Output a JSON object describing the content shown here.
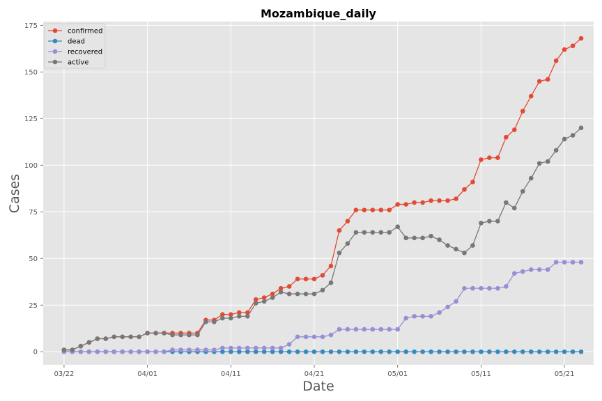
{
  "chart_data": {
    "type": "line",
    "title": "Mozambique_daily",
    "xlabel": "Date",
    "ylabel": "Cases",
    "ylim": [
      -7,
      177
    ],
    "xlim": [
      -2.5,
      63.5
    ],
    "grid": true,
    "legend_position": "top-left",
    "yticks": [
      0,
      25,
      50,
      75,
      100,
      125,
      150,
      175
    ],
    "ytick_labels": [
      "0",
      "25",
      "50",
      "75",
      "100",
      "125",
      "150",
      "175"
    ],
    "xticks": [
      0,
      10,
      20,
      30,
      40,
      50,
      60
    ],
    "xtick_labels": [
      "03/22",
      "04/01",
      "04/11",
      "04/21",
      "05/01",
      "05/11",
      "05/21"
    ],
    "x": [
      0,
      1,
      2,
      3,
      4,
      5,
      6,
      7,
      8,
      9,
      10,
      11,
      12,
      13,
      14,
      15,
      16,
      17,
      18,
      19,
      20,
      21,
      22,
      23,
      24,
      25,
      26,
      27,
      28,
      29,
      30,
      31,
      32,
      33,
      34,
      35,
      36,
      37,
      38,
      39,
      40,
      41,
      42,
      43,
      44,
      45,
      46,
      47,
      48,
      49,
      50,
      51,
      52,
      53,
      54,
      55,
      56,
      57,
      58,
      59,
      60,
      61,
      62
    ],
    "series": [
      {
        "name": "confirmed",
        "color": "#e24a33",
        "values": [
          1,
          1,
          3,
          5,
          7,
          7,
          8,
          8,
          8,
          8,
          10,
          10,
          10,
          10,
          10,
          10,
          10,
          17,
          17,
          20,
          20,
          21,
          21,
          28,
          29,
          31,
          34,
          35,
          39,
          39,
          39,
          41,
          46,
          65,
          70,
          76,
          76,
          76,
          76,
          76,
          79,
          79,
          80,
          80,
          81,
          81,
          81,
          82,
          87,
          91,
          103,
          104,
          104,
          115,
          119,
          129,
          137,
          145,
          146,
          156,
          162,
          164,
          168
        ]
      },
      {
        "name": "dead",
        "color": "#348abd",
        "values": [
          0,
          0,
          0,
          0,
          0,
          0,
          0,
          0,
          0,
          0,
          0,
          0,
          0,
          0,
          0,
          0,
          0,
          0,
          0,
          0,
          0,
          0,
          0,
          0,
          0,
          0,
          0,
          0,
          0,
          0,
          0,
          0,
          0,
          0,
          0,
          0,
          0,
          0,
          0,
          0,
          0,
          0,
          0,
          0,
          0,
          0,
          0,
          0,
          0,
          0,
          0,
          0,
          0,
          0,
          0,
          0,
          0,
          0,
          0,
          0,
          0,
          0,
          0
        ]
      },
      {
        "name": "recovered",
        "color": "#988ed5",
        "values": [
          0,
          0,
          0,
          0,
          0,
          0,
          0,
          0,
          0,
          0,
          0,
          0,
          0,
          1,
          1,
          1,
          1,
          1,
          1,
          2,
          2,
          2,
          2,
          2,
          2,
          2,
          2,
          4,
          8,
          8,
          8,
          8,
          9,
          12,
          12,
          12,
          12,
          12,
          12,
          12,
          12,
          18,
          19,
          19,
          19,
          21,
          24,
          27,
          34,
          34,
          34,
          34,
          34,
          35,
          42,
          43,
          44,
          44,
          44,
          48,
          48,
          48,
          48
        ]
      },
      {
        "name": "active",
        "color": "#777777",
        "values": [
          1,
          1,
          3,
          5,
          7,
          7,
          8,
          8,
          8,
          8,
          10,
          10,
          10,
          9,
          9,
          9,
          9,
          16,
          16,
          18,
          18,
          19,
          19,
          26,
          27,
          29,
          32,
          31,
          31,
          31,
          31,
          33,
          37,
          53,
          58,
          64,
          64,
          64,
          64,
          64,
          67,
          61,
          61,
          61,
          62,
          60,
          57,
          55,
          53,
          57,
          69,
          70,
          70,
          80,
          77,
          86,
          93,
          101,
          102,
          108,
          114,
          116,
          120
        ]
      }
    ]
  }
}
